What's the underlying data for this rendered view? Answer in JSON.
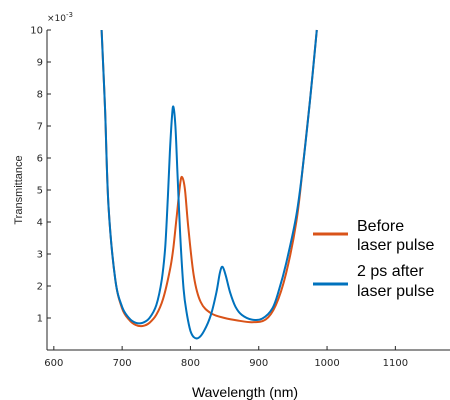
{
  "chart_data": {
    "type": "line",
    "xlabel": "Wavelength (nm)",
    "ylabel": "Transmittance",
    "y_multiplier": "×10",
    "y_multiplier_exp": "-3",
    "xlim": [
      590,
      1180
    ],
    "ylim": [
      0,
      10
    ],
    "xticks": [
      600,
      700,
      800,
      900,
      1000,
      1100
    ],
    "yticks": [
      1,
      2,
      3,
      4,
      5,
      6,
      7,
      8,
      9,
      10
    ],
    "grid": false,
    "legend_placement": "right",
    "series": [
      {
        "name": "Before laser pulse",
        "color": "#d95319",
        "x": [
          670,
          675,
          680,
          690,
          700,
          710,
          720,
          730,
          740,
          750,
          760,
          770,
          775,
          780,
          785,
          788,
          792,
          797,
          805,
          815,
          830,
          850,
          870,
          890,
          910,
          925,
          940,
          955,
          965,
          975,
          985
        ],
        "y": [
          10,
          7.5,
          4.5,
          2.2,
          1.3,
          0.95,
          0.78,
          0.75,
          0.85,
          1.1,
          1.6,
          2.5,
          3.2,
          4.2,
          5.2,
          5.4,
          5.0,
          3.8,
          2.3,
          1.5,
          1.15,
          1.0,
          0.92,
          0.87,
          0.95,
          1.4,
          2.4,
          4.0,
          5.8,
          7.8,
          10
        ]
      },
      {
        "name": "2 ps after laser pulse",
        "color": "#0072bd",
        "x": [
          670,
          675,
          680,
          690,
          700,
          710,
          720,
          730,
          740,
          750,
          758,
          763,
          767,
          770,
          773,
          775,
          778,
          781,
          785,
          790,
          795,
          800,
          805,
          812,
          820,
          830,
          838,
          843,
          847,
          852,
          858,
          866,
          875,
          890,
          905,
          920,
          930,
          940,
          955,
          965,
          975,
          985
        ],
        "y": [
          10,
          7.5,
          4.5,
          2.2,
          1.35,
          1.0,
          0.85,
          0.85,
          1.0,
          1.4,
          2.2,
          3.2,
          4.8,
          6.2,
          7.3,
          7.6,
          7.0,
          5.5,
          3.6,
          1.9,
          1.1,
          0.6,
          0.4,
          0.38,
          0.6,
          1.1,
          1.8,
          2.4,
          2.6,
          2.3,
          1.8,
          1.35,
          1.1,
          0.95,
          0.98,
          1.3,
          1.9,
          2.7,
          4.2,
          5.8,
          7.8,
          10
        ]
      }
    ],
    "legend": [
      {
        "line1": "Before",
        "line2": "laser pulse",
        "color": "#d95319"
      },
      {
        "line1": "2 ps after",
        "line2": "laser pulse",
        "color": "#0072bd"
      }
    ]
  }
}
